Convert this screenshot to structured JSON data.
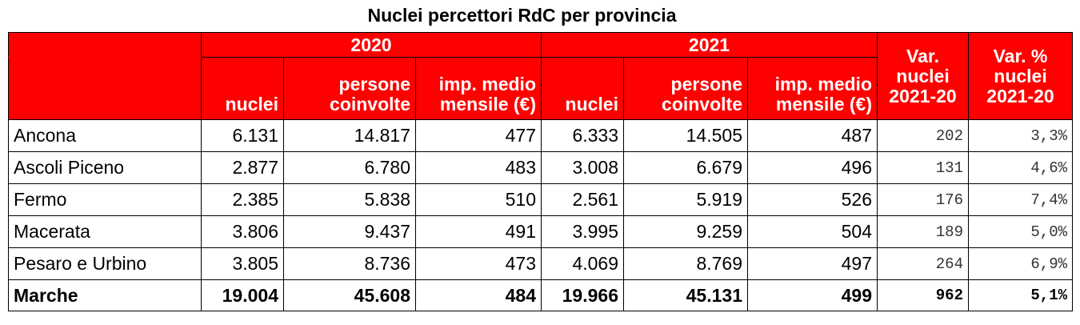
{
  "title": "Nuclei percettori RdC per provincia",
  "header": {
    "year_2020": "2020",
    "year_2021": "2021",
    "var_nuclei": [
      "Var.",
      "nuclei",
      "2021-20"
    ],
    "var_pct": [
      "Var. %",
      "nuclei",
      "2021-20"
    ],
    "col_nuclei": "nuclei",
    "col_persone": [
      "persone",
      "coinvolte"
    ],
    "col_imp": [
      "imp. medio",
      "mensile (€)"
    ]
  },
  "rows": [
    {
      "provincia": "Ancona",
      "n2020": "6.131",
      "p2020": "14.817",
      "i2020": "477",
      "n2021": "6.333",
      "p2021": "14.505",
      "i2021": "487",
      "var": "202",
      "varpct": "3,3%"
    },
    {
      "provincia": "Ascoli Piceno",
      "n2020": "2.877",
      "p2020": "6.780",
      "i2020": "483",
      "n2021": "3.008",
      "p2021": "6.679",
      "i2021": "496",
      "var": "131",
      "varpct": "4,6%"
    },
    {
      "provincia": "Fermo",
      "n2020": "2.385",
      "p2020": "5.838",
      "i2020": "510",
      "n2021": "2.561",
      "p2021": "5.919",
      "i2021": "526",
      "var": "176",
      "varpct": "7,4%"
    },
    {
      "provincia": "Macerata",
      "n2020": "3.806",
      "p2020": "9.437",
      "i2020": "491",
      "n2021": "3.995",
      "p2021": "9.259",
      "i2021": "504",
      "var": "189",
      "varpct": "5,0%"
    },
    {
      "provincia": "Pesaro e Urbino",
      "n2020": "3.805",
      "p2020": "8.736",
      "i2020": "473",
      "n2021": "4.069",
      "p2021": "8.769",
      "i2021": "497",
      "var": "264",
      "varpct": "6,9%"
    }
  ],
  "total": {
    "provincia": "Marche",
    "n2020": "19.004",
    "p2020": "45.608",
    "i2020": "484",
    "n2021": "19.966",
    "p2021": "45.131",
    "i2021": "499",
    "var": "962",
    "varpct": "5,1%"
  }
}
